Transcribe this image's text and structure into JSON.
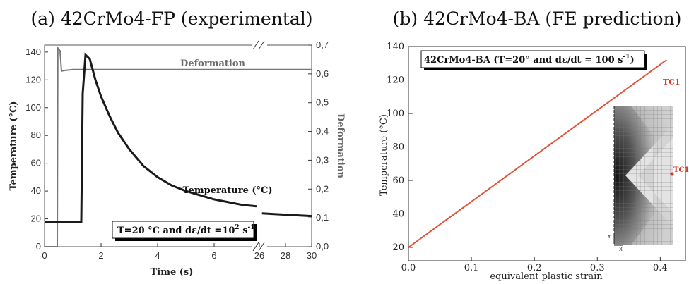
{
  "panel_a": {
    "title": "(a) 42CrMo4-FP (experimental)",
    "xlabel": "Time (s)",
    "ylabel_left": "Temperature (°C)",
    "ylabel_right": "Deformation",
    "x_ticks": [
      "0",
      "2",
      "4",
      "6",
      "26",
      "28",
      "30"
    ],
    "y_ticks_left": [
      "0",
      "20",
      "40",
      "60",
      "80",
      "100",
      "120",
      "140"
    ],
    "y_ticks_right": [
      "0,0",
      "0,1",
      "0,2",
      "0,3",
      "0,4",
      "0,5",
      "0,6",
      "0,7"
    ],
    "deformation_label": "Deformation",
    "temperature_label": "Temperature (°C)",
    "condition_text": "T=20 °C and dε/dt =10",
    "condition_exp1": "2",
    "condition_unit": " s",
    "condition_exp2": "-1"
  },
  "panel_b": {
    "title": "(b) 42CrMo4-BA (FE prediction)",
    "xlabel": "equivalent plastic strain",
    "ylabel": "Temperature (°C)",
    "x_ticks": [
      "0.0",
      "0.1",
      "0.2",
      "0.3",
      "0.4"
    ],
    "y_ticks": [
      "20",
      "40",
      "60",
      "80",
      "100",
      "120",
      "140"
    ],
    "condition_text": "42CrMo4-BA (T=20° and dε/dt = 100 s",
    "condition_exp": "-1",
    "condition_close": ")",
    "series_label": "TC1",
    "inset_point_label": "TC1",
    "inset_axis_y": "Y",
    "inset_axis_x": "X"
  },
  "colors": {
    "temperature_curve": "#1a1a1a",
    "deformation_curve": "#777777",
    "fe_line": "#e0533a",
    "tc1_label": "#d23a2a"
  },
  "chart_data": [
    {
      "type": "line",
      "title": "(a) 42CrMo4-FP (experimental)",
      "xlabel": "Time (s)",
      "ylabel": "Temperature (°C)",
      "y2label": "Deformation",
      "xlim": [
        0,
        30
      ],
      "x_axis_break": [
        7.6,
        26
      ],
      "ylim": [
        0,
        145
      ],
      "y2lim": [
        0,
        0.7
      ],
      "series": [
        {
          "name": "Temperature (°C)",
          "axis": "left",
          "x": [
            0,
            0.3,
            1.3,
            1.35,
            1.45,
            1.6,
            1.8,
            2.0,
            2.3,
            2.6,
            3.0,
            3.5,
            4.0,
            4.5,
            5.0,
            5.5,
            6.0,
            6.5,
            7.0,
            7.5,
            26.2,
            27,
            28,
            29,
            30
          ],
          "y": [
            18,
            18,
            18,
            110,
            138,
            135,
            120,
            108,
            94,
            82,
            70,
            58,
            50,
            44,
            40,
            37,
            34,
            32,
            30,
            29,
            24,
            23.5,
            23,
            22.5,
            22
          ]
        },
        {
          "name": "Deformation",
          "axis": "right",
          "x": [
            0,
            0.45,
            0.47,
            0.55,
            0.6,
            0.7,
            1.0,
            2.0,
            4.0,
            6.0,
            7.6,
            26,
            28,
            30
          ],
          "y": [
            0,
            0,
            0.69,
            0.68,
            0.61,
            0.612,
            0.615,
            0.615,
            0.615,
            0.615,
            0.615,
            0.615,
            0.615,
            0.615
          ]
        }
      ],
      "grid": false
    },
    {
      "type": "line",
      "title": "(b) 42CrMo4-BA (FE prediction)",
      "xlabel": "equivalent plastic strain",
      "ylabel": "Temperature (°C)",
      "xlim": [
        0,
        0.44
      ],
      "ylim": [
        12,
        140
      ],
      "series": [
        {
          "name": "TC1",
          "x": [
            0.0,
            0.41
          ],
          "y": [
            20,
            132
          ]
        }
      ],
      "grid": false
    }
  ]
}
